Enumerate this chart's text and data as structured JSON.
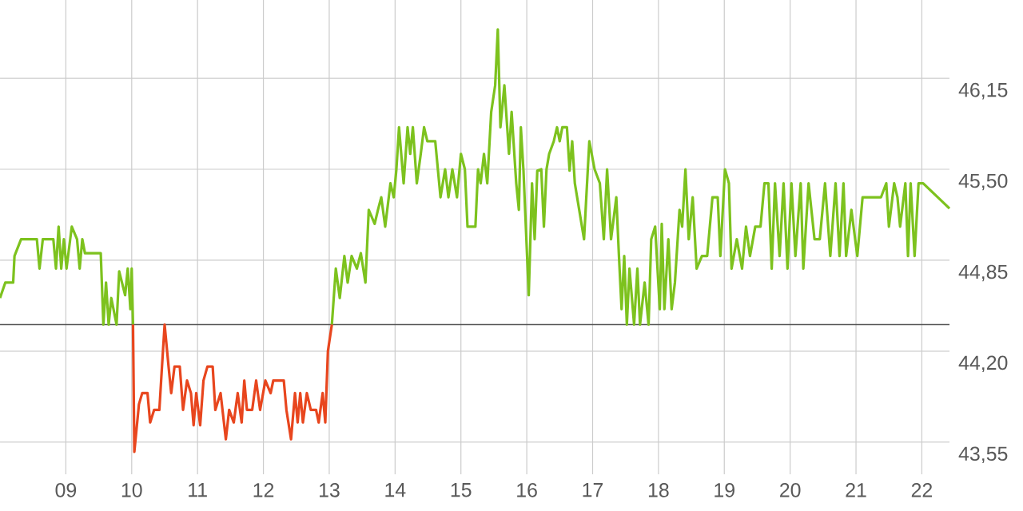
{
  "chart_data": {
    "type": "line",
    "xlim": [
      8,
      22.42
    ],
    "ylim": [
      43.32,
      46.71
    ],
    "xticks": [
      {
        "value": 9,
        "label": "09"
      },
      {
        "value": 10,
        "label": "10"
      },
      {
        "value": 11,
        "label": "11"
      },
      {
        "value": 12,
        "label": "12"
      },
      {
        "value": 13,
        "label": "13"
      },
      {
        "value": 14,
        "label": "14"
      },
      {
        "value": 15,
        "label": "15"
      },
      {
        "value": 16,
        "label": "16"
      },
      {
        "value": 17,
        "label": "17"
      },
      {
        "value": 18,
        "label": "18"
      },
      {
        "value": 19,
        "label": "19"
      },
      {
        "value": 20,
        "label": "20"
      },
      {
        "value": 21,
        "label": "21"
      },
      {
        "value": 22,
        "label": "22"
      }
    ],
    "yticks": [
      {
        "value": 43.55,
        "label": "43,55"
      },
      {
        "value": 44.2,
        "label": "44,20"
      },
      {
        "value": 44.85,
        "label": "44,85"
      },
      {
        "value": 45.5,
        "label": "45,50"
      },
      {
        "value": 46.15,
        "label": "46,15"
      }
    ],
    "grid": true,
    "ref_lines": [
      {
        "axis": "y",
        "value": 44.39,
        "color": "#555555"
      }
    ],
    "series": [
      {
        "color": "#7dc21e",
        "x": [
          8.0,
          8.08,
          8.2,
          8.22,
          8.32,
          8.56,
          8.6,
          8.65,
          8.81,
          8.85,
          8.89,
          8.93,
          8.97,
          9.01,
          9.09,
          9.17,
          9.21,
          9.25,
          9.29,
          9.53,
          9.57,
          9.61,
          9.65,
          9.69,
          9.77,
          9.81,
          9.9,
          9.94,
          9.98,
          10.0,
          10.02,
          11.5,
          13.04,
          13.1,
          13.16,
          13.23,
          13.28,
          13.34,
          13.42,
          13.48,
          13.55,
          13.6,
          13.69,
          13.74,
          13.79,
          13.85,
          13.93,
          13.98,
          14.02,
          14.06,
          14.13,
          14.19,
          14.23,
          14.27,
          14.33,
          14.39,
          14.44,
          14.49,
          14.61,
          14.69,
          14.76,
          14.81,
          14.87,
          14.94,
          15.0,
          15.06,
          15.1,
          15.22,
          15.26,
          15.3,
          15.35,
          15.4,
          15.46,
          15.52,
          15.56,
          15.6,
          15.66,
          15.73,
          15.77,
          15.84,
          15.88,
          15.91,
          15.95,
          16.03,
          16.08,
          16.12,
          16.16,
          16.22,
          16.26,
          16.3,
          16.34,
          16.41,
          16.46,
          16.5,
          16.54,
          16.61,
          16.65,
          16.69,
          16.73,
          16.87,
          16.95,
          17.03,
          17.11,
          17.17,
          17.22,
          17.28,
          17.36,
          17.4,
          17.44,
          17.48,
          17.52,
          17.56,
          17.63,
          17.68,
          17.72,
          17.79,
          17.85,
          17.89,
          17.95,
          18.02,
          18.05,
          18.09,
          18.15,
          18.2,
          18.25,
          18.32,
          18.36,
          18.41,
          18.46,
          18.52,
          18.58,
          18.66,
          18.74,
          18.82,
          18.9,
          18.94,
          19.01,
          19.07,
          19.11,
          19.19,
          19.27,
          19.33,
          19.39,
          19.47,
          19.55,
          19.61,
          19.67,
          19.72,
          19.77,
          19.84,
          19.9,
          19.96,
          20.02,
          20.08,
          20.16,
          20.2,
          20.28,
          20.37,
          20.45,
          20.53,
          20.61,
          20.69,
          20.75,
          20.81,
          20.85,
          20.93,
          21.02,
          21.1,
          21.18,
          21.38,
          21.46,
          21.5,
          21.58,
          21.63,
          21.67,
          21.75,
          21.79,
          21.83,
          21.89,
          21.95,
          22.02,
          22.42
        ],
        "values": [
          44.58,
          44.69,
          44.69,
          44.88,
          45.0,
          45.0,
          44.79,
          45.0,
          45.0,
          44.79,
          45.09,
          44.79,
          45.0,
          44.79,
          45.09,
          45.0,
          44.79,
          45.0,
          44.9,
          44.9,
          44.39,
          44.69,
          44.39,
          44.58,
          44.39,
          44.77,
          44.6,
          44.79,
          44.5,
          44.79,
          44.39,
          null,
          44.39,
          44.79,
          44.58,
          44.88,
          44.69,
          44.88,
          44.79,
          44.9,
          44.69,
          45.21,
          45.11,
          45.21,
          45.3,
          45.09,
          45.4,
          45.3,
          45.5,
          45.8,
          45.4,
          45.8,
          45.61,
          45.8,
          45.4,
          45.61,
          45.8,
          45.7,
          45.7,
          45.3,
          45.5,
          45.3,
          45.5,
          45.3,
          45.61,
          45.5,
          45.09,
          45.09,
          45.5,
          45.4,
          45.61,
          45.4,
          45.91,
          46.1,
          46.5,
          45.8,
          46.1,
          45.61,
          45.91,
          45.4,
          45.21,
          45.8,
          45.49,
          44.6,
          45.4,
          45.0,
          45.49,
          45.5,
          45.09,
          45.5,
          45.61,
          45.7,
          45.8,
          45.7,
          45.8,
          45.8,
          45.49,
          45.7,
          45.4,
          45.0,
          45.7,
          45.5,
          45.4,
          45.0,
          45.5,
          45.0,
          45.3,
          44.88,
          44.5,
          44.88,
          44.39,
          44.79,
          44.39,
          44.79,
          44.39,
          44.69,
          44.39,
          45.0,
          45.09,
          44.5,
          45.11,
          44.5,
          45.0,
          44.5,
          44.69,
          45.21,
          45.09,
          45.5,
          45.0,
          45.3,
          44.79,
          44.88,
          44.88,
          45.3,
          45.3,
          44.88,
          45.5,
          45.4,
          44.79,
          45.0,
          44.79,
          45.09,
          44.88,
          45.09,
          45.09,
          45.4,
          45.4,
          44.79,
          45.4,
          44.88,
          45.4,
          44.79,
          45.4,
          44.88,
          45.4,
          44.79,
          45.4,
          45.0,
          45.0,
          45.4,
          44.88,
          45.4,
          44.88,
          45.4,
          44.88,
          45.21,
          44.88,
          45.3,
          45.3,
          45.3,
          45.4,
          45.09,
          45.4,
          45.3,
          45.09,
          45.4,
          44.88,
          45.4,
          44.88,
          45.4,
          45.4,
          45.22
        ]
      },
      {
        "color": "#e8461e",
        "x": [
          10.02,
          10.04,
          10.11,
          10.16,
          10.24,
          10.28,
          10.34,
          10.42,
          10.46,
          10.5,
          10.56,
          10.6,
          10.65,
          10.73,
          10.78,
          10.84,
          10.9,
          10.94,
          10.98,
          11.04,
          11.09,
          11.15,
          11.23,
          11.27,
          11.35,
          11.43,
          11.48,
          11.55,
          11.61,
          11.67,
          11.71,
          11.75,
          11.83,
          11.89,
          11.95,
          12.03,
          12.11,
          12.15,
          12.31,
          12.35,
          12.42,
          12.48,
          12.52,
          12.56,
          12.6,
          12.66,
          12.72,
          12.8,
          12.84,
          12.9,
          12.94,
          12.98,
          13.04
        ],
        "values": [
          44.39,
          43.48,
          43.82,
          43.9,
          43.9,
          43.69,
          43.78,
          43.78,
          44.09,
          44.39,
          44.09,
          43.9,
          44.09,
          44.09,
          43.78,
          43.99,
          43.9,
          43.67,
          43.9,
          43.67,
          43.99,
          44.09,
          44.09,
          43.78,
          43.9,
          43.57,
          43.78,
          43.69,
          43.9,
          43.69,
          43.99,
          43.78,
          43.78,
          43.99,
          43.78,
          43.99,
          43.9,
          43.99,
          43.99,
          43.78,
          43.57,
          43.9,
          43.69,
          43.9,
          43.69,
          43.9,
          43.78,
          43.78,
          43.69,
          43.9,
          43.69,
          44.2,
          44.39
        ]
      }
    ]
  }
}
